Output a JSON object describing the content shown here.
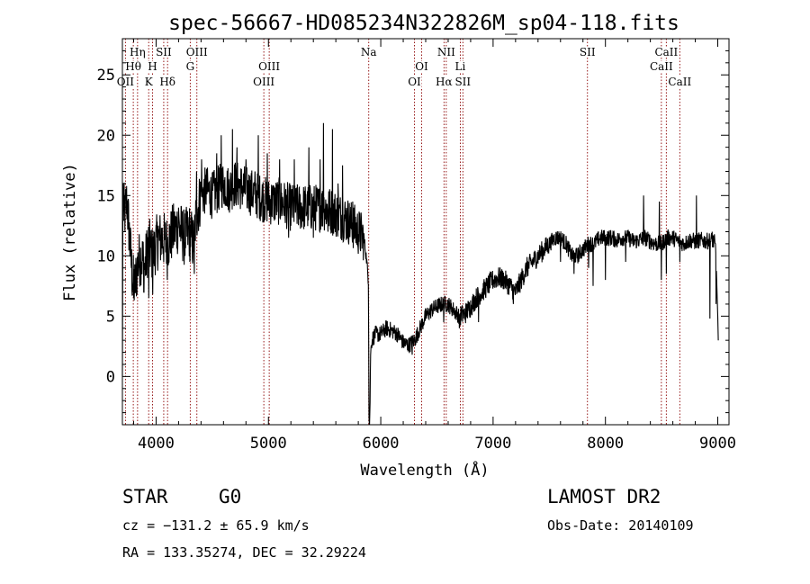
{
  "chart_data": {
    "type": "line",
    "title": "spec-56667-HD085234N322826M_sp04-118.fits",
    "xlabel": "Wavelength (Å)",
    "ylabel": "Flux (relative)",
    "xlim": [
      3700,
      9100
    ],
    "ylim": [
      -4,
      28
    ],
    "xticks": [
      4000,
      5000,
      6000,
      7000,
      8000,
      9000
    ],
    "yticks": [
      0,
      5,
      10,
      15,
      20,
      25
    ],
    "grid": false,
    "legend": "none",
    "line_color": "#000000",
    "marker_color": "#8b0000",
    "spectrum_anchors": [
      [
        3700,
        0
      ],
      [
        3705,
        14
      ],
      [
        3720,
        13.5
      ],
      [
        3740,
        14.5
      ],
      [
        3760,
        12
      ],
      [
        3790,
        8
      ],
      [
        3810,
        7.5
      ],
      [
        3840,
        9.5
      ],
      [
        3870,
        10
      ],
      [
        3900,
        9
      ],
      [
        3930,
        11
      ],
      [
        3970,
        10
      ],
      [
        4000,
        11
      ],
      [
        4050,
        11.5
      ],
      [
        4100,
        11
      ],
      [
        4150,
        12
      ],
      [
        4200,
        12.5
      ],
      [
        4250,
        11.5
      ],
      [
        4300,
        12
      ],
      [
        4330,
        11
      ],
      [
        4360,
        13.5
      ],
      [
        4400,
        15
      ],
      [
        4450,
        15.5
      ],
      [
        4500,
        15
      ],
      [
        4550,
        15.5
      ],
      [
        4600,
        16
      ],
      [
        4650,
        15.5
      ],
      [
        4700,
        16
      ],
      [
        4800,
        15.5
      ],
      [
        4900,
        15
      ],
      [
        5000,
        14.5
      ],
      [
        5100,
        14.5
      ],
      [
        5200,
        14
      ],
      [
        5300,
        14
      ],
      [
        5400,
        14
      ],
      [
        5500,
        14
      ],
      [
        5600,
        13.5
      ],
      [
        5700,
        13
      ],
      [
        5800,
        12
      ],
      [
        5850,
        11.5
      ],
      [
        5870,
        10
      ],
      [
        5890,
        8
      ],
      [
        5895,
        -3
      ],
      [
        5900,
        -4
      ],
      [
        5905,
        -2
      ],
      [
        5910,
        2
      ],
      [
        5920,
        3
      ],
      [
        5950,
        3.5
      ],
      [
        6000,
        3.5
      ],
      [
        6050,
        4
      ],
      [
        6100,
        3.8
      ],
      [
        6150,
        3.5
      ],
      [
        6200,
        2.8
      ],
      [
        6250,
        2.6
      ],
      [
        6300,
        3
      ],
      [
        6350,
        4
      ],
      [
        6400,
        5
      ],
      [
        6450,
        5.5
      ],
      [
        6500,
        5.8
      ],
      [
        6550,
        6
      ],
      [
        6600,
        6
      ],
      [
        6650,
        5.5
      ],
      [
        6700,
        5
      ],
      [
        6750,
        5.2
      ],
      [
        6800,
        5.8
      ],
      [
        6850,
        6.5
      ],
      [
        6900,
        7
      ],
      [
        6950,
        7.5
      ],
      [
        7000,
        8
      ],
      [
        7050,
        8.2
      ],
      [
        7100,
        8
      ],
      [
        7150,
        7.5
      ],
      [
        7200,
        7
      ],
      [
        7250,
        8
      ],
      [
        7300,
        9
      ],
      [
        7350,
        9.5
      ],
      [
        7400,
        10
      ],
      [
        7450,
        10.5
      ],
      [
        7500,
        11
      ],
      [
        7550,
        11.5
      ],
      [
        7600,
        11.5
      ],
      [
        7650,
        11
      ],
      [
        7700,
        10
      ],
      [
        7750,
        10
      ],
      [
        7800,
        10.5
      ],
      [
        7850,
        11
      ],
      [
        7900,
        11
      ],
      [
        7950,
        11.5
      ],
      [
        8000,
        11.5
      ],
      [
        8050,
        11.5
      ],
      [
        8100,
        11.3
      ],
      [
        8150,
        11.5
      ],
      [
        8200,
        11.5
      ],
      [
        8250,
        11.2
      ],
      [
        8300,
        11.3
      ],
      [
        8350,
        11.5
      ],
      [
        8400,
        11.2
      ],
      [
        8450,
        11
      ],
      [
        8500,
        11
      ],
      [
        8550,
        11.5
      ],
      [
        8600,
        11.5
      ],
      [
        8650,
        11.2
      ],
      [
        8700,
        11
      ],
      [
        8750,
        11.3
      ],
      [
        8800,
        11.2
      ],
      [
        8850,
        11.3
      ],
      [
        8900,
        11.2
      ],
      [
        8950,
        11.3
      ],
      [
        8980,
        11
      ],
      [
        9000,
        5
      ],
      [
        9005,
        3
      ]
    ],
    "spectrum_features": [
      [
        3705,
        16
      ],
      [
        3725,
        15
      ],
      [
        3745,
        14
      ],
      [
        3800,
        6.5
      ],
      [
        3830,
        6.8
      ],
      [
        3890,
        7
      ],
      [
        3935,
        6.5
      ],
      [
        3970,
        6.8
      ],
      [
        4020,
        12.5
      ],
      [
        4101,
        8
      ],
      [
        4200,
        14
      ],
      [
        4300,
        9.5
      ],
      [
        4340,
        8.5
      ],
      [
        4360,
        17
      ],
      [
        4405,
        18
      ],
      [
        4540,
        18.5
      ],
      [
        4580,
        20
      ],
      [
        4680,
        20.5
      ],
      [
        4720,
        19
      ],
      [
        4800,
        18
      ],
      [
        4880,
        17
      ],
      [
        4910,
        20
      ],
      [
        4990,
        18.5
      ],
      [
        5100,
        18
      ],
      [
        5180,
        11.5
      ],
      [
        5230,
        18
      ],
      [
        5360,
        19
      ],
      [
        5400,
        11.5
      ],
      [
        5460,
        18
      ],
      [
        5490,
        21
      ],
      [
        5530,
        12
      ],
      [
        5570,
        20.5
      ],
      [
        5620,
        16
      ],
      [
        5660,
        17.5
      ],
      [
        5750,
        14.5
      ],
      [
        6280,
        1.8
      ],
      [
        6560,
        4.5
      ],
      [
        6700,
        4
      ],
      [
        6870,
        4.5
      ],
      [
        7180,
        6
      ],
      [
        7600,
        9.5
      ],
      [
        7720,
        8.5
      ],
      [
        7850,
        9
      ],
      [
        7890,
        7.5
      ],
      [
        8000,
        8
      ],
      [
        8180,
        9.5
      ],
      [
        8340,
        15
      ],
      [
        8480,
        14.5
      ],
      [
        8498,
        8
      ],
      [
        8542,
        8.5
      ],
      [
        8662,
        9.5
      ],
      [
        8810,
        15
      ],
      [
        8930,
        4.8
      ],
      [
        8950,
        12
      ],
      [
        8985,
        6
      ]
    ],
    "marker_lines": [
      {
        "name": "Hη",
        "wave": 3835,
        "row": 0,
        "anchor": "middle"
      },
      {
        "name": "Hθ",
        "wave": 3797,
        "row": 1,
        "anchor": "middle"
      },
      {
        "name": "OII",
        "wave": 3727,
        "row": 2,
        "anchor": "middle"
      },
      {
        "name": "SII",
        "wave": 4068,
        "row": 0,
        "anchor": "middle"
      },
      {
        "name": "H",
        "wave": 3968,
        "row": 1,
        "anchor": "middle"
      },
      {
        "name": "K",
        "wave": 3934,
        "row": 2,
        "anchor": "middle"
      },
      {
        "name": "Hδ",
        "wave": 4102,
        "row": 2,
        "anchor": "middle"
      },
      {
        "name": "OIII",
        "wave": 4363,
        "row": 0,
        "anchor": "middle"
      },
      {
        "name": "G",
        "wave": 4304,
        "row": 1,
        "anchor": "middle"
      },
      {
        "name": "OIII",
        "wave": 5007,
        "row": 1,
        "anchor": "middle"
      },
      {
        "name": "OIII",
        "wave": 4959,
        "row": 2,
        "anchor": "middle"
      },
      {
        "name": "Na",
        "wave": 5893,
        "row": 0,
        "anchor": "middle"
      },
      {
        "name": "OI",
        "wave": 6364,
        "row": 1,
        "anchor": "middle"
      },
      {
        "name": "OI",
        "wave": 6300,
        "row": 2,
        "anchor": "middle"
      },
      {
        "name": "NII",
        "wave": 6583,
        "row": 0,
        "anchor": "middle"
      },
      {
        "name": "Hα",
        "wave": 6563,
        "row": 2,
        "anchor": "middle"
      },
      {
        "name": "Li",
        "wave": 6708,
        "row": 1,
        "anchor": "middle"
      },
      {
        "name": "SII",
        "wave": 6731,
        "row": 2,
        "anchor": "middle"
      },
      {
        "name": "SII",
        "wave": 7840,
        "row": 0,
        "anchor": "middle"
      },
      {
        "name": "CaII",
        "wave": 8542,
        "row": 0,
        "anchor": "middle"
      },
      {
        "name": "CaII",
        "wave": 8498,
        "row": 1,
        "anchor": "middle"
      },
      {
        "name": "CaII",
        "wave": 8662,
        "row": 2,
        "anchor": "middle"
      }
    ]
  },
  "info": {
    "class": "STAR",
    "subclass": "G0",
    "survey": "LAMOST DR2",
    "cz": "cz = −131.2 ± 65.9 km/s",
    "obs_date": "Obs-Date: 20140109",
    "radec": "RA = 133.35274, DEC =  32.29224"
  }
}
